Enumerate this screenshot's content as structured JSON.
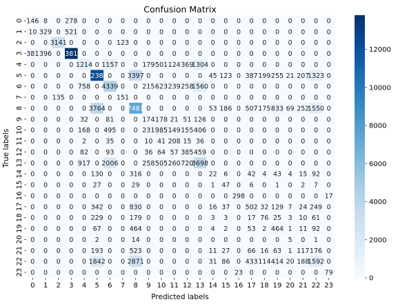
{
  "chart_data": {
    "type": "heatmap",
    "title": "Confusion Matrix",
    "xlabel": "Predicted labels",
    "ylabel": "True labels",
    "x_ticks": [
      "0",
      "1",
      "2",
      "3",
      "4",
      "5",
      "6",
      "7",
      "8",
      "9",
      "10",
      "11",
      "12",
      "13",
      "14",
      "15",
      "16",
      "17",
      "18",
      "19",
      "20",
      "21",
      "22",
      "23"
    ],
    "y_ticks": [
      "0",
      "1",
      "2",
      "3",
      "4",
      "5",
      "6",
      "7",
      "8",
      "9",
      "10",
      "11",
      "12",
      "13",
      "14",
      "15",
      "16",
      "17",
      "18",
      "19",
      "20",
      "21",
      "22",
      "23"
    ],
    "colormap": "Blues",
    "color_min": 0,
    "color_max": 13800,
    "colorbar_ticks": [
      0,
      2000,
      4000,
      6000,
      8000,
      10000,
      12000
    ],
    "matrix": [
      [
        146,
        8,
        0,
        278,
        0,
        0,
        0,
        0,
        0,
        0,
        0,
        0,
        0,
        0,
        0,
        0,
        0,
        0,
        0,
        0,
        0,
        0,
        0,
        0
      ],
      [
        10,
        329,
        0,
        521,
        0,
        0,
        0,
        0,
        0,
        0,
        0,
        0,
        0,
        0,
        0,
        0,
        0,
        0,
        0,
        0,
        0,
        0,
        0,
        0
      ],
      [
        0,
        0,
        3141,
        0,
        0,
        0,
        0,
        123,
        0,
        0,
        0,
        0,
        0,
        0,
        0,
        0,
        0,
        0,
        0,
        0,
        0,
        0,
        0,
        0
      ],
      [
        381,
        396,
        0,
        13815,
        0,
        0,
        0,
        0,
        0,
        0,
        0,
        0,
        0,
        0,
        0,
        0,
        0,
        0,
        0,
        0,
        0,
        0,
        0,
        0
      ],
      [
        0,
        0,
        0,
        0,
        1214,
        0,
        1157,
        0,
        0,
        179,
        501,
        124,
        369,
        1304,
        0,
        0,
        0,
        0,
        0,
        0,
        0,
        0,
        0,
        0
      ],
      [
        0,
        0,
        0,
        0,
        0,
        12386,
        0,
        0,
        3397,
        0,
        0,
        0,
        0,
        0,
        45,
        123,
        0,
        387,
        199,
        255,
        21,
        207,
        1323,
        0
      ],
      [
        0,
        0,
        0,
        0,
        758,
        0,
        4339,
        0,
        0,
        215,
        623,
        239,
        258,
        1560,
        0,
        0,
        0,
        0,
        0,
        0,
        0,
        0,
        0,
        0
      ],
      [
        0,
        0,
        135,
        0,
        0,
        0,
        0,
        151,
        0,
        0,
        0,
        0,
        0,
        0,
        0,
        0,
        0,
        0,
        0,
        0,
        0,
        0,
        0,
        0
      ],
      [
        0,
        0,
        0,
        0,
        0,
        3764,
        0,
        0,
        7481,
        0,
        0,
        0,
        0,
        0,
        53,
        186,
        0,
        507,
        175,
        833,
        69,
        252,
        1550,
        0
      ],
      [
        0,
        0,
        0,
        0,
        32,
        0,
        81,
        0,
        0,
        174,
        178,
        21,
        51,
        126,
        0,
        0,
        0,
        0,
        0,
        0,
        0,
        0,
        0,
        0
      ],
      [
        0,
        0,
        0,
        0,
        168,
        0,
        495,
        0,
        0,
        231,
        985,
        149,
        155,
        406,
        0,
        0,
        0,
        0,
        0,
        0,
        0,
        0,
        0,
        0
      ],
      [
        0,
        0,
        0,
        0,
        2,
        0,
        35,
        0,
        0,
        10,
        41,
        208,
        15,
        36,
        0,
        0,
        0,
        0,
        0,
        0,
        0,
        0,
        0,
        0
      ],
      [
        0,
        0,
        0,
        0,
        82,
        0,
        93,
        0,
        0,
        36,
        64,
        57,
        385,
        459,
        0,
        0,
        0,
        0,
        0,
        0,
        0,
        0,
        0,
        0
      ],
      [
        0,
        0,
        0,
        0,
        917,
        0,
        2006,
        0,
        0,
        258,
        505,
        260,
        720,
        3698,
        0,
        0,
        0,
        0,
        0,
        0,
        0,
        0,
        0,
        0
      ],
      [
        0,
        0,
        0,
        0,
        0,
        130,
        0,
        0,
        316,
        0,
        0,
        0,
        0,
        0,
        22,
        6,
        0,
        42,
        4,
        43,
        4,
        15,
        92,
        0
      ],
      [
        0,
        0,
        0,
        0,
        0,
        27,
        0,
        0,
        29,
        0,
        0,
        0,
        0,
        0,
        1,
        47,
        0,
        6,
        0,
        1,
        0,
        2,
        7,
        0
      ],
      [
        0,
        0,
        0,
        0,
        0,
        0,
        0,
        0,
        0,
        0,
        0,
        0,
        0,
        0,
        0,
        0,
        298,
        0,
        0,
        0,
        0,
        0,
        0,
        17
      ],
      [
        0,
        0,
        0,
        0,
        0,
        342,
        0,
        0,
        830,
        0,
        0,
        0,
        0,
        0,
        16,
        37,
        0,
        502,
        32,
        129,
        7,
        24,
        249,
        0
      ],
      [
        0,
        0,
        0,
        0,
        0,
        229,
        0,
        0,
        179,
        0,
        0,
        0,
        0,
        0,
        3,
        3,
        0,
        17,
        76,
        25,
        3,
        10,
        61,
        0
      ],
      [
        0,
        0,
        0,
        0,
        0,
        67,
        0,
        0,
        464,
        0,
        0,
        0,
        0,
        0,
        4,
        2,
        0,
        53,
        2,
        464,
        1,
        11,
        92,
        0
      ],
      [
        0,
        0,
        0,
        0,
        0,
        2,
        0,
        0,
        14,
        0,
        0,
        0,
        0,
        0,
        0,
        0,
        0,
        0,
        0,
        0,
        5,
        0,
        1,
        0
      ],
      [
        0,
        0,
        0,
        0,
        0,
        193,
        0,
        0,
        523,
        0,
        0,
        0,
        0,
        0,
        11,
        27,
        0,
        66,
        16,
        63,
        1,
        117,
        176,
        0
      ],
      [
        0,
        0,
        0,
        0,
        0,
        1842,
        0,
        0,
        2871,
        0,
        0,
        0,
        0,
        0,
        31,
        86,
        0,
        433,
        114,
        414,
        20,
        188,
        1592,
        0
      ],
      [
        0,
        0,
        0,
        0,
        0,
        0,
        0,
        0,
        0,
        0,
        0,
        0,
        0,
        0,
        0,
        0,
        23,
        0,
        0,
        0,
        0,
        0,
        0,
        79
      ]
    ],
    "grid": false,
    "legend": "colorbar-right"
  }
}
